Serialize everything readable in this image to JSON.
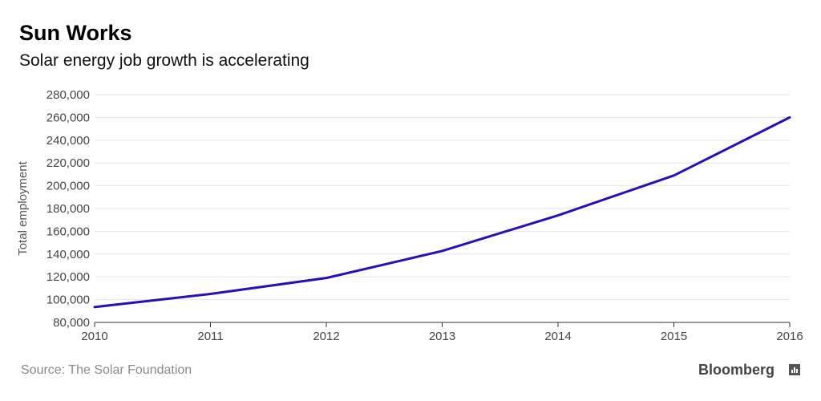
{
  "header": {
    "title": "Sun Works",
    "subtitle": "Solar energy job growth is accelerating"
  },
  "footer": {
    "source": "Source: The Solar Foundation",
    "brand": "Bloomberg"
  },
  "colors": {
    "line": "#2a0fb4",
    "grid": "#e6e6e6",
    "axis": "#333333"
  },
  "chart_data": {
    "type": "line",
    "title": "Sun Works",
    "subtitle": "Solar energy job growth is accelerating",
    "xlabel": "",
    "ylabel": "Total employment",
    "x": [
      2010,
      2011,
      2012,
      2013,
      2014,
      2015,
      2016
    ],
    "x_tick_labels": [
      "2010",
      "2011",
      "2012",
      "2013",
      "2014",
      "2015",
      "2016"
    ],
    "series": [
      {
        "values": [
          93500,
          105000,
          119000,
          142700,
          174000,
          209000,
          260000
        ]
      }
    ],
    "ylim": [
      80000,
      280000
    ],
    "y_ticks": [
      80000,
      100000,
      120000,
      140000,
      160000,
      180000,
      200000,
      220000,
      240000,
      260000,
      280000
    ],
    "y_tick_labels": [
      "80,000",
      "100,000",
      "120,000",
      "140,000",
      "160,000",
      "180,000",
      "200,000",
      "220,000",
      "240,000",
      "260,000",
      "280,000"
    ],
    "grid": true,
    "legend": "none"
  }
}
